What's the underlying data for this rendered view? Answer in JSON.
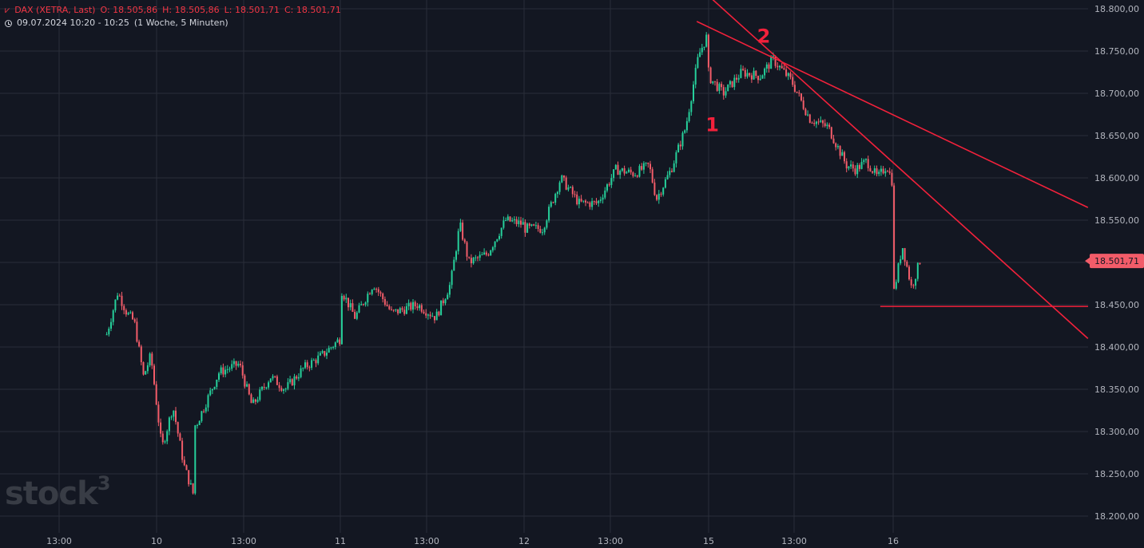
{
  "legend": {
    "symbol_icon": "candles-icon",
    "title": "DAX (XETRA, Last)",
    "open": "O: 18.505,86",
    "high": "H: 18.505,86",
    "low": "L: 18.501,71",
    "close": "C: 18.501,71",
    "time": "09.07.2024 10:20 - 10:25",
    "interval": "(1 Woche, 5 Minuten)"
  },
  "watermark": {
    "text": "stock",
    "sup": "3"
  },
  "colors": {
    "background": "#131722",
    "grid": "#2a2e39",
    "up": "#26d09b",
    "down": "#f25c69",
    "annotation": "#f2213b",
    "axis_text": "#b2b5be",
    "price_badge": "#f25c69"
  },
  "chart_data": {
    "type": "candlestick",
    "title": "",
    "y_axis": {
      "min": 18180,
      "max": 18810,
      "ticks": [
        18800,
        18750,
        18700,
        18650,
        18600,
        18550,
        18500,
        18450,
        18400,
        18350,
        18300,
        18250,
        18200
      ],
      "tick_labels": [
        "18.800,00",
        "18.750,00",
        "18.700,00",
        "18.650,00",
        "18.600,00",
        "18.550,00",
        "18.500,00",
        "18.450,00",
        "18.400,00",
        "18.350,00",
        "18.300,00",
        "18.250,00",
        "18.200,00"
      ],
      "side": "right"
    },
    "x_axis": {
      "labels": [
        "13:00",
        "10",
        "13:00",
        "11",
        "13:00",
        "12",
        "13:00",
        "15",
        "13:00",
        "16"
      ],
      "day_boundaries": [
        "10",
        "11",
        "12",
        "15",
        "16"
      ]
    },
    "current_price": {
      "value": 18501.71,
      "label": "18.501,71"
    },
    "grid": true,
    "price_path": [
      {
        "day": "09",
        "t": 0.72,
        "p": 18415
      },
      {
        "day": "09",
        "t": 0.78,
        "p": 18465
      },
      {
        "day": "09",
        "t": 0.83,
        "p": 18440
      },
      {
        "day": "09",
        "t": 0.87,
        "p": 18430
      },
      {
        "day": "09",
        "t": 0.92,
        "p": 18365
      },
      {
        "day": "09",
        "t": 0.96,
        "p": 18390
      },
      {
        "day": "09",
        "t": 1.02,
        "p": 18280
      },
      {
        "day": "09",
        "t": 1.08,
        "p": 18330
      },
      {
        "day": "09",
        "t": 1.14,
        "p": 18260
      },
      {
        "day": "09",
        "t": 1.2,
        "p": 18220
      },
      {
        "day": "10",
        "t": 0.0,
        "p": 18240
      },
      {
        "day": "10",
        "t": 0.1,
        "p": 18280
      },
      {
        "day": "10",
        "t": 0.22,
        "p": 18310
      },
      {
        "day": "10",
        "t": 0.34,
        "p": 18370
      },
      {
        "day": "10",
        "t": 0.45,
        "p": 18380
      },
      {
        "day": "10",
        "t": 0.52,
        "p": 18330
      },
      {
        "day": "10",
        "t": 0.62,
        "p": 18365
      },
      {
        "day": "10",
        "t": 0.7,
        "p": 18350
      },
      {
        "day": "10",
        "t": 0.8,
        "p": 18375
      },
      {
        "day": "10",
        "t": 0.9,
        "p": 18390
      },
      {
        "day": "10",
        "t": 1.0,
        "p": 18410
      },
      {
        "day": "11",
        "t": 0.0,
        "p": 18470
      },
      {
        "day": "11",
        "t": 0.08,
        "p": 18435
      },
      {
        "day": "11",
        "t": 0.18,
        "p": 18475
      },
      {
        "day": "11",
        "t": 0.28,
        "p": 18440
      },
      {
        "day": "11",
        "t": 0.42,
        "p": 18450
      },
      {
        "day": "11",
        "t": 0.52,
        "p": 18435
      },
      {
        "day": "11",
        "t": 0.6,
        "p": 18475
      },
      {
        "day": "11",
        "t": 0.65,
        "p": 18545
      },
      {
        "day": "11",
        "t": 0.7,
        "p": 18500
      },
      {
        "day": "11",
        "t": 0.8,
        "p": 18510
      },
      {
        "day": "11",
        "t": 0.9,
        "p": 18550
      },
      {
        "day": "11",
        "t": 1.0,
        "p": 18545
      },
      {
        "day": "12",
        "t": 0.0,
        "p": 18540
      },
      {
        "day": "12",
        "t": 0.1,
        "p": 18540
      },
      {
        "day": "12",
        "t": 0.2,
        "p": 18600
      },
      {
        "day": "12",
        "t": 0.3,
        "p": 18570
      },
      {
        "day": "12",
        "t": 0.4,
        "p": 18570
      },
      {
        "day": "12",
        "t": 0.5,
        "p": 18610
      },
      {
        "day": "12",
        "t": 0.6,
        "p": 18605
      },
      {
        "day": "12",
        "t": 0.68,
        "p": 18615
      },
      {
        "day": "12",
        "t": 0.72,
        "p": 18575
      },
      {
        "day": "12",
        "t": 0.8,
        "p": 18610
      },
      {
        "day": "12",
        "t": 0.88,
        "p": 18660
      },
      {
        "day": "12",
        "t": 0.95,
        "p": 18745
      },
      {
        "day": "12",
        "t": 1.0,
        "p": 18770
      },
      {
        "day": "15",
        "t": 0.0,
        "p": 18720
      },
      {
        "day": "15",
        "t": 0.08,
        "p": 18700
      },
      {
        "day": "15",
        "t": 0.18,
        "p": 18725
      },
      {
        "day": "15",
        "t": 0.28,
        "p": 18720
      },
      {
        "day": "15",
        "t": 0.35,
        "p": 18740
      },
      {
        "day": "15",
        "t": 0.45,
        "p": 18715
      },
      {
        "day": "15",
        "t": 0.55,
        "p": 18670
      },
      {
        "day": "15",
        "t": 0.65,
        "p": 18660
      },
      {
        "day": "15",
        "t": 0.75,
        "p": 18615
      },
      {
        "day": "15",
        "t": 0.8,
        "p": 18610
      },
      {
        "day": "15",
        "t": 0.86,
        "p": 18620
      },
      {
        "day": "15",
        "t": 0.92,
        "p": 18600
      },
      {
        "day": "15",
        "t": 0.97,
        "p": 18615
      },
      {
        "day": "15",
        "t": 1.0,
        "p": 18595
      },
      {
        "day": "16",
        "t": 0.0,
        "p": 18460
      },
      {
        "day": "16",
        "t": 0.05,
        "p": 18520
      },
      {
        "day": "16",
        "t": 0.1,
        "p": 18470
      },
      {
        "day": "16",
        "t": 0.15,
        "p": 18505
      }
    ],
    "annotations": {
      "labels": [
        {
          "text": "1",
          "day": "15",
          "t": 0.02,
          "price": 18655
        },
        {
          "text": "2",
          "day": "15",
          "t": 0.3,
          "price": 18760
        }
      ],
      "trendlines": [
        {
          "from": {
            "day": "12",
            "t": 0.94,
            "price": 18785
          },
          "to": {
            "day": "16",
            "t": 1.06,
            "price": 18565
          }
        },
        {
          "from": {
            "day": "12",
            "t": 0.98,
            "price": 18820
          },
          "to": {
            "day": "16",
            "t": 1.06,
            "price": 18410
          }
        }
      ],
      "horizontal": [
        {
          "price": 18448,
          "from_day": "16",
          "from_t": -0.07
        }
      ]
    }
  }
}
